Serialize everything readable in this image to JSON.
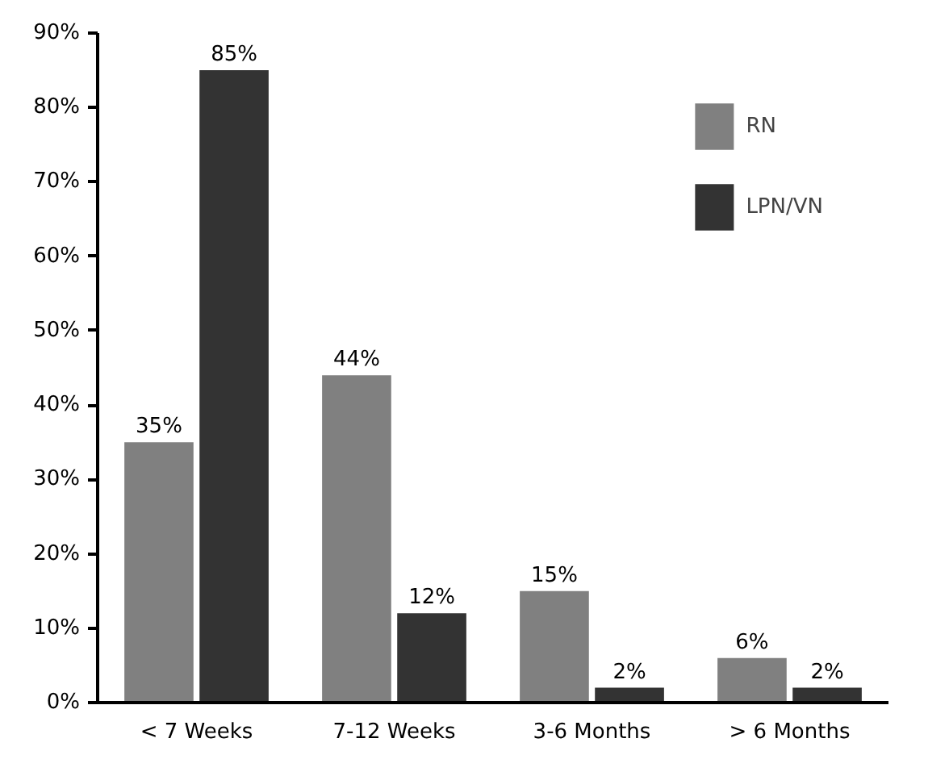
{
  "chart_data": {
    "type": "bar",
    "categories": [
      "< 7 Weeks",
      "7-12 Weeks",
      "3-6 Months",
      "> 6 Months"
    ],
    "series": [
      {
        "name": "RN",
        "color": "#808080",
        "values": [
          35,
          44,
          15,
          6
        ],
        "value_labels": [
          "35%",
          "44%",
          "15%",
          "6%"
        ]
      },
      {
        "name": "LPN/VN",
        "color": "#333333",
        "values": [
          85,
          12,
          2,
          2
        ],
        "value_labels": [
          "85%",
          "12%",
          "2%",
          "2%"
        ]
      }
    ],
    "ylim": [
      0,
      90
    ],
    "yticks": [
      {
        "value": 0,
        "label": "0%"
      },
      {
        "value": 10,
        "label": "10%"
      },
      {
        "value": 20,
        "label": "20%"
      },
      {
        "value": 30,
        "label": "30%"
      },
      {
        "value": 40,
        "label": "40%"
      },
      {
        "value": 50,
        "label": "50%"
      },
      {
        "value": 60,
        "label": "60%"
      },
      {
        "value": 70,
        "label": "70%"
      },
      {
        "value": 80,
        "label": "80%"
      },
      {
        "value": 90,
        "label": "90%"
      }
    ],
    "grid": false,
    "legend": "top right"
  }
}
